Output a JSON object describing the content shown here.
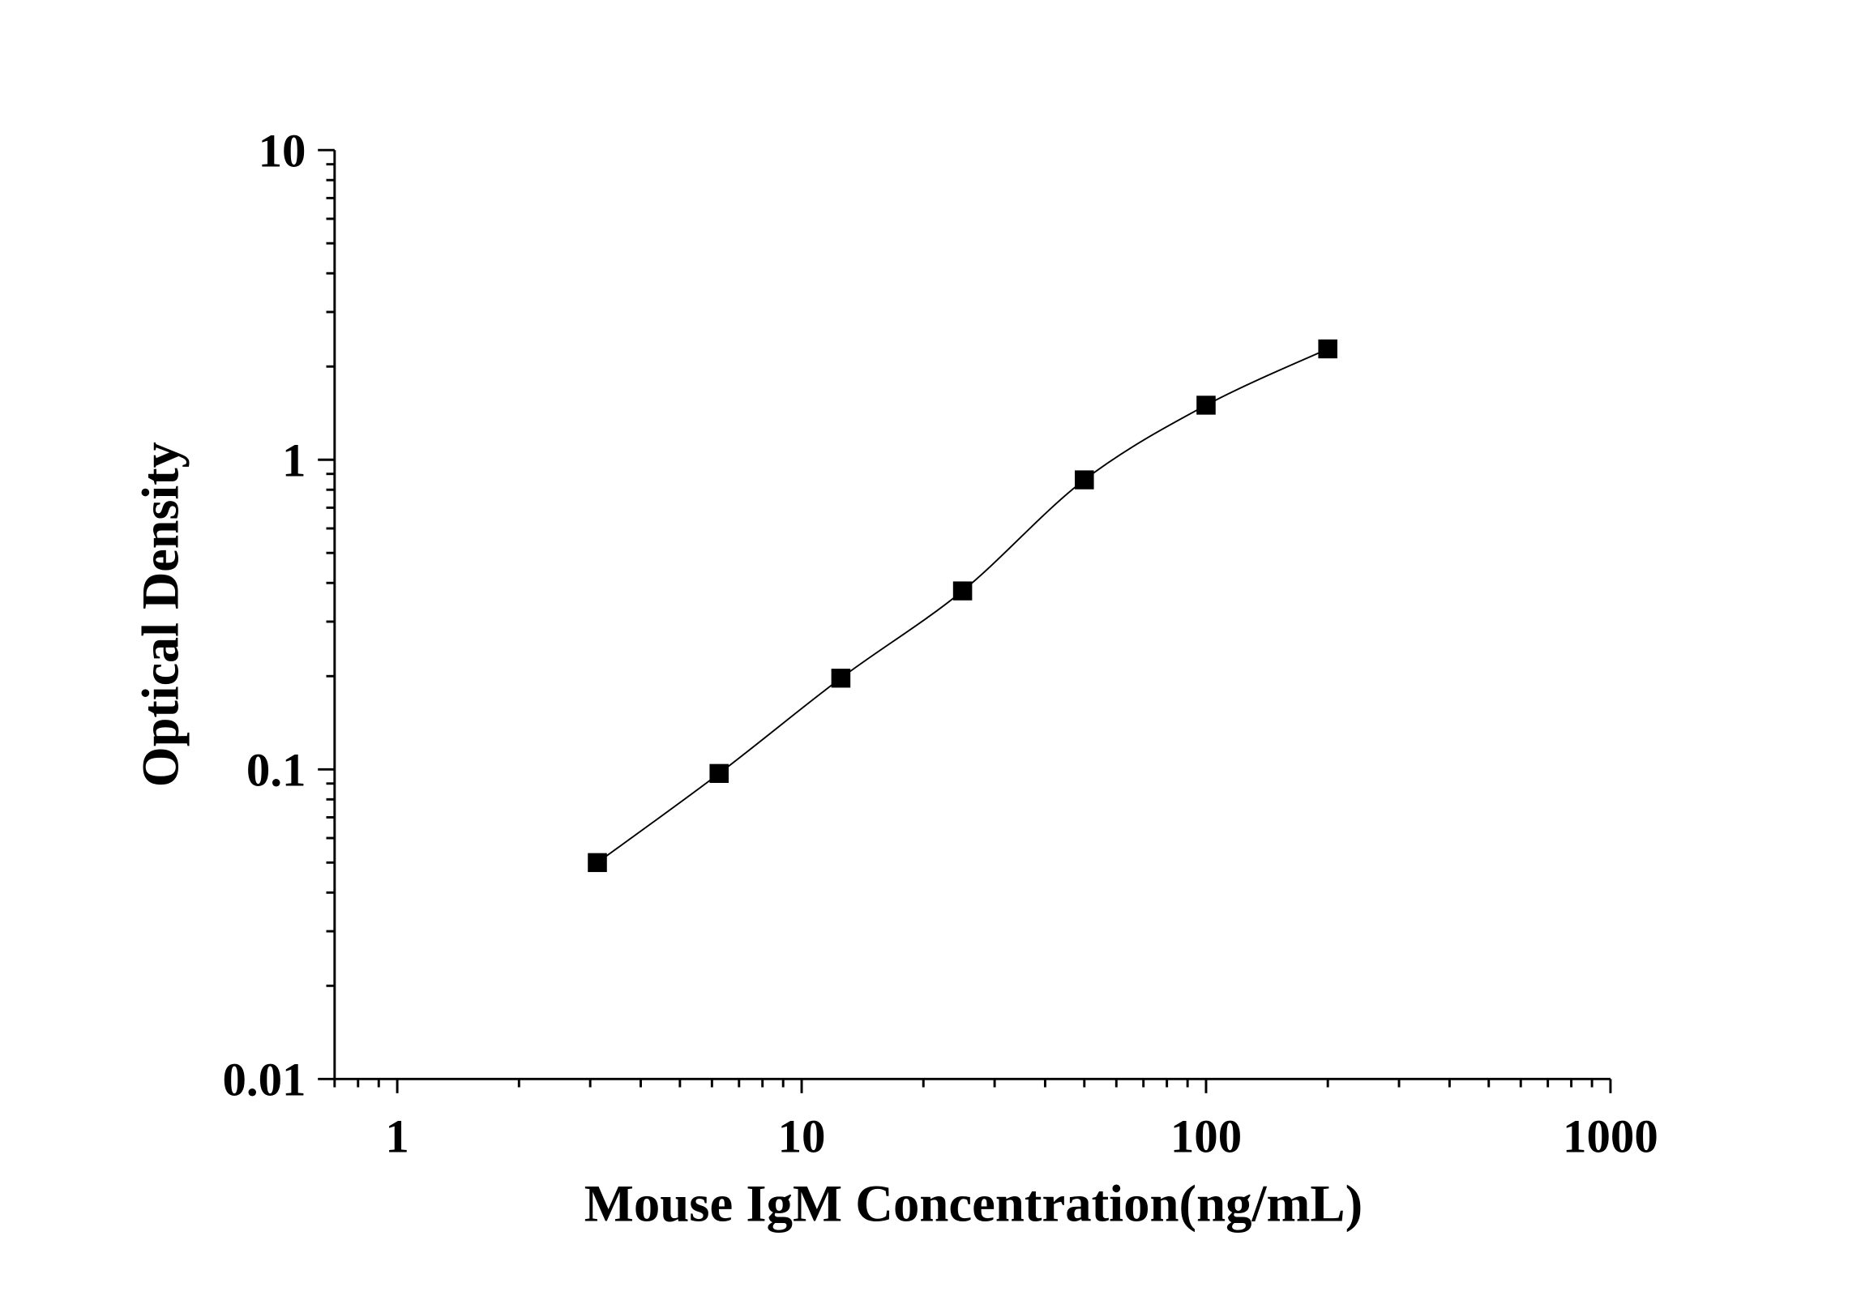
{
  "chart_data": {
    "type": "line",
    "title": "",
    "xlabel": "Mouse IgM Concentration(ng/mL)",
    "ylabel": "Optical Density",
    "xscale": "log",
    "yscale": "log",
    "xlim": [
      0.7,
      1000
    ],
    "ylim": [
      0.01,
      10
    ],
    "xticks": [
      1,
      10,
      100,
      1000
    ],
    "xtick_labels": [
      "1",
      "10",
      "100",
      "1000"
    ],
    "yticks": [
      0.01,
      0.1,
      1,
      10
    ],
    "ytick_labels": [
      "0.01",
      "0.1",
      "1",
      "10"
    ],
    "grid": false,
    "marker": "square",
    "color": "#000000",
    "x": [
      3.125,
      6.25,
      12.5,
      25,
      50,
      100,
      200
    ],
    "y": [
      0.05,
      0.097,
      0.197,
      0.377,
      0.861,
      1.5,
      2.28
    ]
  }
}
